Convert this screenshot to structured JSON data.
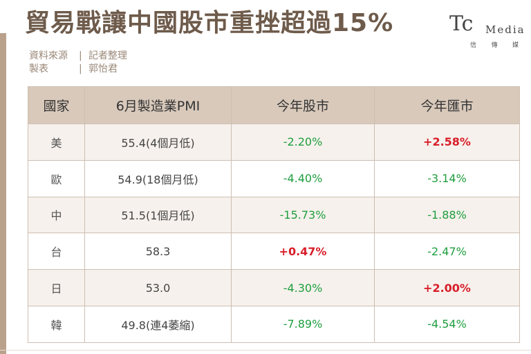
{
  "title": "貿易戰讓中國股市重挫超過15%",
  "source": {
    "data_label": "資料來源",
    "data_value": "記者整理",
    "maker_label": "製表",
    "maker_value": "郭怡君"
  },
  "logo": {
    "mark": "Tc",
    "brand": "Media",
    "sub": [
      "信",
      "傳",
      "媒"
    ]
  },
  "colors": {
    "negative": "#1e9e3e",
    "positive": "#d81e2a",
    "header": "#d8c9bb",
    "accent": "#b9a18b"
  },
  "table": {
    "headers": [
      "國家",
      "6月製造業PMI",
      "今年股市",
      "今年匯市"
    ],
    "rows": [
      [
        "美",
        "55.4(4個月低)",
        "-2.20%",
        "+2.58%"
      ],
      [
        "歐",
        "54.9(18個月低)",
        "-4.40%",
        "-3.14%"
      ],
      [
        "中",
        "51.5(1個月低)",
        "-15.73%",
        "-1.88%"
      ],
      [
        "台",
        "58.3",
        "+0.47%",
        "-2.47%"
      ],
      [
        "日",
        "53.0",
        "-4.30%",
        "+2.00%"
      ],
      [
        "韓",
        "49.8(連4萎縮)",
        "-7.89%",
        "-4.54%"
      ]
    ]
  }
}
